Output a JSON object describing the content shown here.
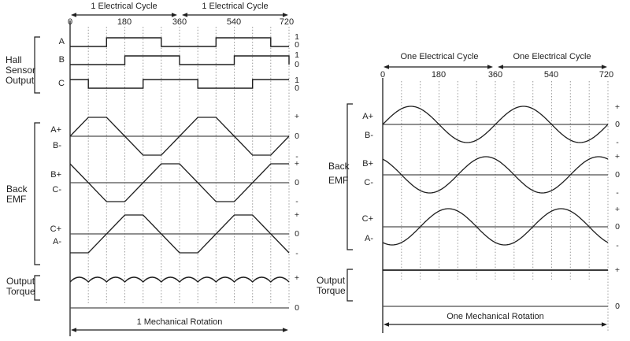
{
  "left": {
    "cycle_label_1": "1 Electrical Cycle",
    "cycle_label_2": "1 Electrical Cycle",
    "ticks": {
      "t0": "0",
      "t180": "180",
      "t360": "360",
      "t540": "540",
      "t720": "720"
    },
    "hall": {
      "group_label": [
        "Hall",
        "Sensor",
        "Output"
      ],
      "trace_a": {
        "label": "A",
        "high": "1",
        "low": "0",
        "initial": 0,
        "toggles_deg": [
          120,
          300,
          480,
          660
        ]
      },
      "trace_b": {
        "label": "B",
        "high": "1",
        "low": "0",
        "initial": 0,
        "toggles_deg": [
          180,
          360,
          540,
          720
        ]
      },
      "trace_c": {
        "label": "C",
        "high": "1",
        "low": "0",
        "initial": 1,
        "toggles_deg": [
          60,
          240,
          420,
          600
        ]
      }
    },
    "emf": {
      "group_label": [
        "Back",
        "EMF"
      ],
      "wave_shape": "trapezoid",
      "row1": {
        "pos": "A+",
        "neg": "B-",
        "phase_deg": 0,
        "plus": "+",
        "zero": "0",
        "minus": "-"
      },
      "row2": {
        "pos": "B+",
        "neg": "C-",
        "phase_deg": 120,
        "plus": "+",
        "zero": "0",
        "minus": "-"
      },
      "row3": {
        "pos": "C+",
        "neg": "A-",
        "phase_deg": -120,
        "plus": "+",
        "zero": "0",
        "minus": "-"
      }
    },
    "torque": {
      "group_label": [
        "Output",
        "Torque"
      ],
      "wave_shape": "ripple",
      "arc_count": 12,
      "plus": "+",
      "zero": "0"
    },
    "mech_label": "1 Mechanical Rotation"
  },
  "right": {
    "cycle_label_1": "One Electrical Cycle",
    "cycle_label_2": "One Electrical Cycle",
    "ticks": {
      "t0": "0",
      "t180": "180",
      "t360": "360",
      "t540": "540",
      "t720": "720"
    },
    "emf": {
      "group_label": [
        "Back",
        "EMF"
      ],
      "wave_shape": "sine",
      "row1": {
        "pos": "A+",
        "neg": "B-",
        "phase_deg": 0,
        "plus": "+",
        "zero": "0",
        "minus": "-"
      },
      "row2": {
        "pos": "B+",
        "neg": "C-",
        "phase_deg": 120,
        "plus": "+",
        "zero": "0",
        "minus": "-"
      },
      "row3": {
        "pos": "C+",
        "neg": "A-",
        "phase_deg": -120,
        "plus": "+",
        "zero": "0",
        "minus": "-"
      }
    },
    "torque": {
      "group_label": [
        "Output",
        "Torque"
      ],
      "wave_shape": "flat",
      "plus": "+",
      "zero": "0"
    },
    "mech_label": "One Mechanical Rotation"
  },
  "axis": {
    "deg_min": 0,
    "deg_max": 720,
    "gridline_step_deg": 60
  },
  "colors": {
    "trace": "#1f1f1f",
    "zero_line": "#4d4d4d",
    "gridline": "#9a9a9a",
    "text": "#1f1f1f"
  }
}
